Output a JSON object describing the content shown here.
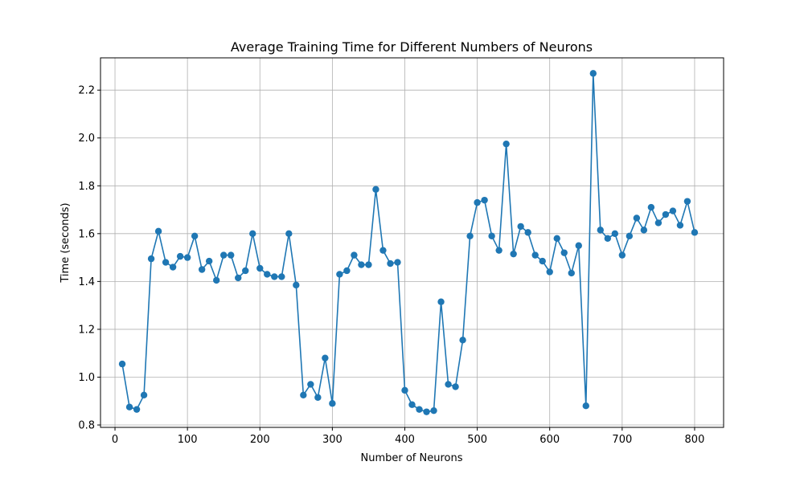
{
  "chart_data": {
    "type": "line",
    "title": "Average Training Time for Different Numbers of Neurons",
    "xlabel": "Number of Neurons",
    "ylabel": "Time (seconds)",
    "xlim": [
      -20,
      840
    ],
    "ylim": [
      0.79,
      2.335
    ],
    "xticks": [
      0,
      100,
      200,
      300,
      400,
      500,
      600,
      700,
      800
    ],
    "yticks": [
      0.8,
      1.0,
      1.2,
      1.4,
      1.6,
      1.8,
      2.0,
      2.2
    ],
    "xtick_labels": [
      "0",
      "100",
      "200",
      "300",
      "400",
      "500",
      "600",
      "700",
      "800"
    ],
    "ytick_labels": [
      "0.8",
      "1.0",
      "1.2",
      "1.4",
      "1.6",
      "1.8",
      "2.0",
      "2.2"
    ],
    "grid": true,
    "line_color": "#1f77b4",
    "marker": "circle",
    "series": [
      {
        "x": [
          10,
          20,
          30,
          40,
          50,
          60,
          70,
          80,
          90,
          100,
          110,
          120,
          130,
          140,
          150,
          160,
          170,
          180,
          190,
          200,
          210,
          220,
          230,
          240,
          250,
          260,
          270,
          280,
          290,
          300,
          310,
          320,
          330,
          340,
          350,
          360,
          370,
          380,
          390,
          400,
          410,
          420,
          430,
          440,
          450,
          460,
          470,
          480,
          490,
          500,
          510,
          520,
          530,
          540,
          550,
          560,
          570,
          580,
          590,
          600,
          610,
          620,
          630,
          640,
          650,
          660,
          670,
          680,
          690,
          700,
          710,
          720,
          730,
          740,
          750,
          760,
          770,
          780,
          790,
          800
        ],
        "values": [
          1.055,
          0.875,
          0.865,
          0.925,
          1.495,
          1.61,
          1.48,
          1.46,
          1.505,
          1.5,
          1.59,
          1.45,
          1.485,
          1.405,
          1.51,
          1.51,
          1.415,
          1.445,
          1.6,
          1.455,
          1.43,
          1.42,
          1.42,
          1.6,
          1.385,
          0.925,
          0.97,
          0.915,
          1.08,
          0.89,
          1.43,
          1.445,
          1.51,
          1.47,
          1.47,
          1.785,
          1.53,
          1.475,
          1.48,
          0.945,
          0.885,
          0.865,
          0.855,
          0.86,
          1.315,
          0.97,
          0.96,
          1.155,
          1.59,
          1.73,
          1.74,
          1.59,
          1.53,
          1.975,
          1.515,
          1.63,
          1.605,
          1.51,
          1.485,
          1.44,
          1.58,
          1.52,
          1.435,
          1.55,
          0.88,
          2.27,
          1.615,
          1.58,
          1.6,
          1.51,
          1.59,
          1.665,
          1.615,
          1.71,
          1.645,
          1.68,
          1.695,
          1.635,
          1.735,
          1.605
        ]
      }
    ]
  }
}
